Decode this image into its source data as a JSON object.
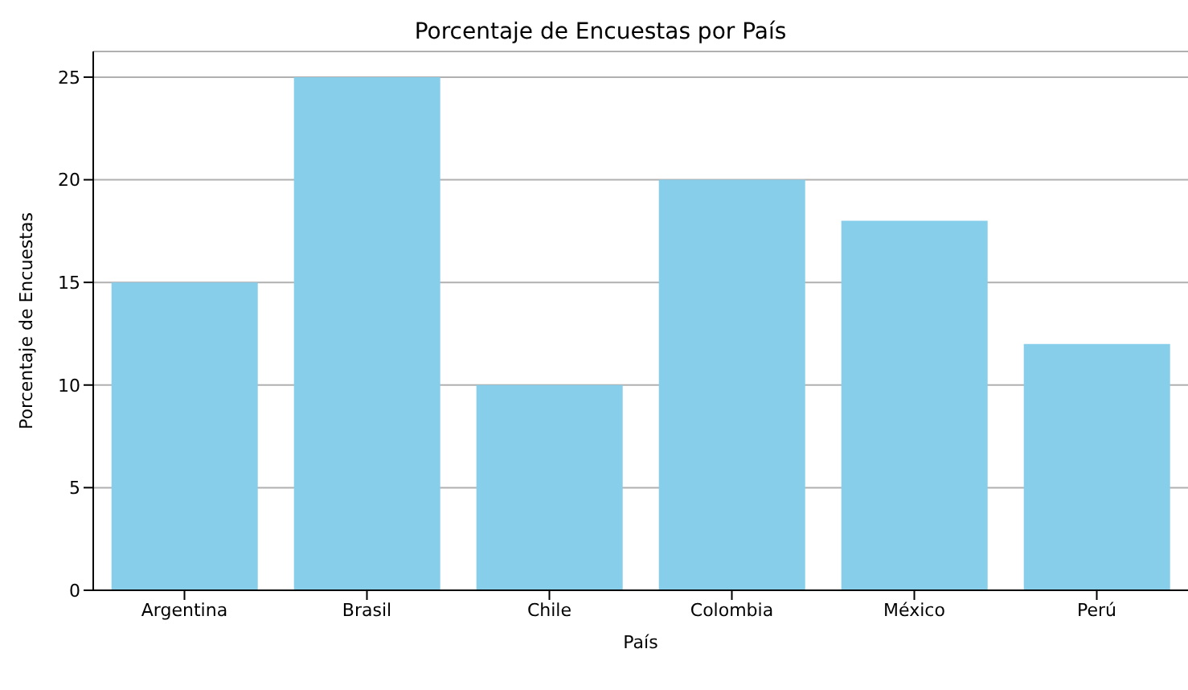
{
  "chart_data": {
    "type": "bar",
    "title": "Porcentaje de Encuestas por País",
    "xlabel": "País",
    "ylabel": "Porcentaje de Encuestas",
    "categories": [
      "Argentina",
      "Brasil",
      "Chile",
      "Colombia",
      "México",
      "Perú"
    ],
    "values": [
      15,
      25,
      10,
      20,
      18,
      12
    ],
    "color": "#87ceeb",
    "ylim": [
      0,
      26.25
    ],
    "yticks": [
      0,
      5,
      10,
      15,
      20,
      25
    ],
    "grid": "y"
  }
}
